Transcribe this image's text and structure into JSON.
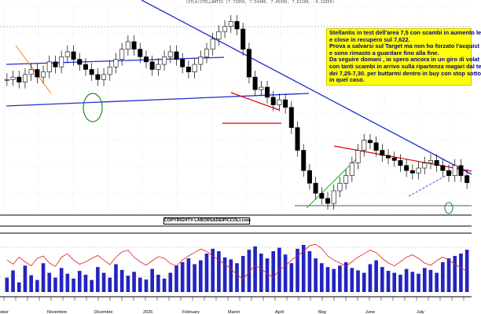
{
  "header": {
    "ticker_line": "(STLA)STELLANTIS (7.72950, 7.54400, 7.45300, 7.62200, -0.12850)"
  },
  "annotation": {
    "lines": [
      "Stellantis in test dell'area 7,5 con scambi in aumento le",
      "e close in recupero sul 7,622.",
      "Prova a salvarsi sul Target ma non ho forzato l'acquist",
      "e sono rimasto a guardare fino alla fine.",
      "Da seguire domani , io spero ancora in un giro di volat",
      "con tanti scambi in arrivo sulla ripartenza magari dal te",
      "dei 7,25-7,30. per buttarmi dentro in buy con stop sotto",
      "in quel caso."
    ]
  },
  "copyright": "COPYRIGHT® LABORSADEIPICCOLI.com",
  "chart_data": {
    "type": "candlestick",
    "title": "(STLA)STELLANTIS (7.72950, 7.54400, 7.45300, 7.62200, -0.12850)",
    "x_labels": [
      "Novembre",
      "Dicembre",
      "2025",
      "February",
      "March",
      "April",
      "May",
      "June",
      "July"
    ],
    "top_left_label": "ober",
    "price_series": {
      "name": "Price",
      "values": [
        11.7,
        11.8,
        11.6,
        11.9,
        12.1,
        11.8,
        12.0,
        12.4,
        12.2,
        12.6,
        12.8,
        12.5,
        12.3,
        12.1,
        11.9,
        11.7,
        11.9,
        12.2,
        12.5,
        12.9,
        13.2,
        12.9,
        12.6,
        12.4,
        12.1,
        12.3,
        12.6,
        12.8,
        12.5,
        12.2,
        12.0,
        12.3,
        12.6,
        12.9,
        13.3,
        13.6,
        13.8,
        14.0,
        13.7,
        12.9,
        11.8,
        11.3,
        11.4,
        11.0,
        10.7,
        10.9,
        10.6,
        9.8,
        8.9,
        8.1,
        7.6,
        7.2,
        7.0,
        6.8,
        7.3,
        7.6,
        7.9,
        8.4,
        8.9,
        9.3,
        9.2,
        8.9,
        8.7,
        8.6,
        8.5,
        8.3,
        8.1,
        8.0,
        8.2,
        8.4,
        8.5,
        8.3,
        8.1,
        7.9,
        8.3,
        7.9,
        7.62
      ]
    },
    "oscillator": {
      "name": "RSI",
      "values": [
        55,
        48,
        60,
        52,
        45,
        58,
        62,
        50,
        44,
        60,
        66,
        55,
        48,
        52,
        58,
        63,
        55,
        47,
        60,
        69,
        72,
        60,
        52,
        46,
        54,
        61,
        58,
        49,
        45,
        55,
        62,
        68,
        74,
        70,
        62,
        55,
        48,
        40,
        30,
        22,
        35,
        46,
        40,
        32,
        25,
        38,
        45,
        55,
        62,
        70,
        80,
        82,
        75,
        62,
        55,
        50,
        44,
        52,
        60,
        66,
        72,
        68,
        58,
        50,
        45,
        52,
        60,
        64,
        58,
        50,
        46,
        54,
        60,
        55,
        48,
        42,
        35
      ]
    },
    "volume": {
      "name": "Volume",
      "values": [
        30,
        45,
        20,
        55,
        35,
        25,
        60,
        40,
        30,
        50,
        38,
        28,
        44,
        36,
        25,
        52,
        40,
        30,
        58,
        46,
        34,
        42,
        30,
        26,
        48,
        36,
        28,
        40,
        55,
        62,
        70,
        58,
        66,
        80,
        90,
        85,
        72,
        68,
        60,
        75,
        88,
        95,
        80,
        70,
        85,
        92,
        78,
        60,
        90,
        98,
        85,
        70,
        60,
        52,
        48,
        55,
        62,
        50,
        45,
        40,
        58,
        66,
        52,
        44,
        40,
        36,
        48,
        42,
        38,
        50,
        46,
        40,
        62,
        70,
        75,
        80,
        88
      ]
    },
    "ylim": [
      6.4,
      14.6
    ],
    "grid": true,
    "legend": "none"
  }
}
